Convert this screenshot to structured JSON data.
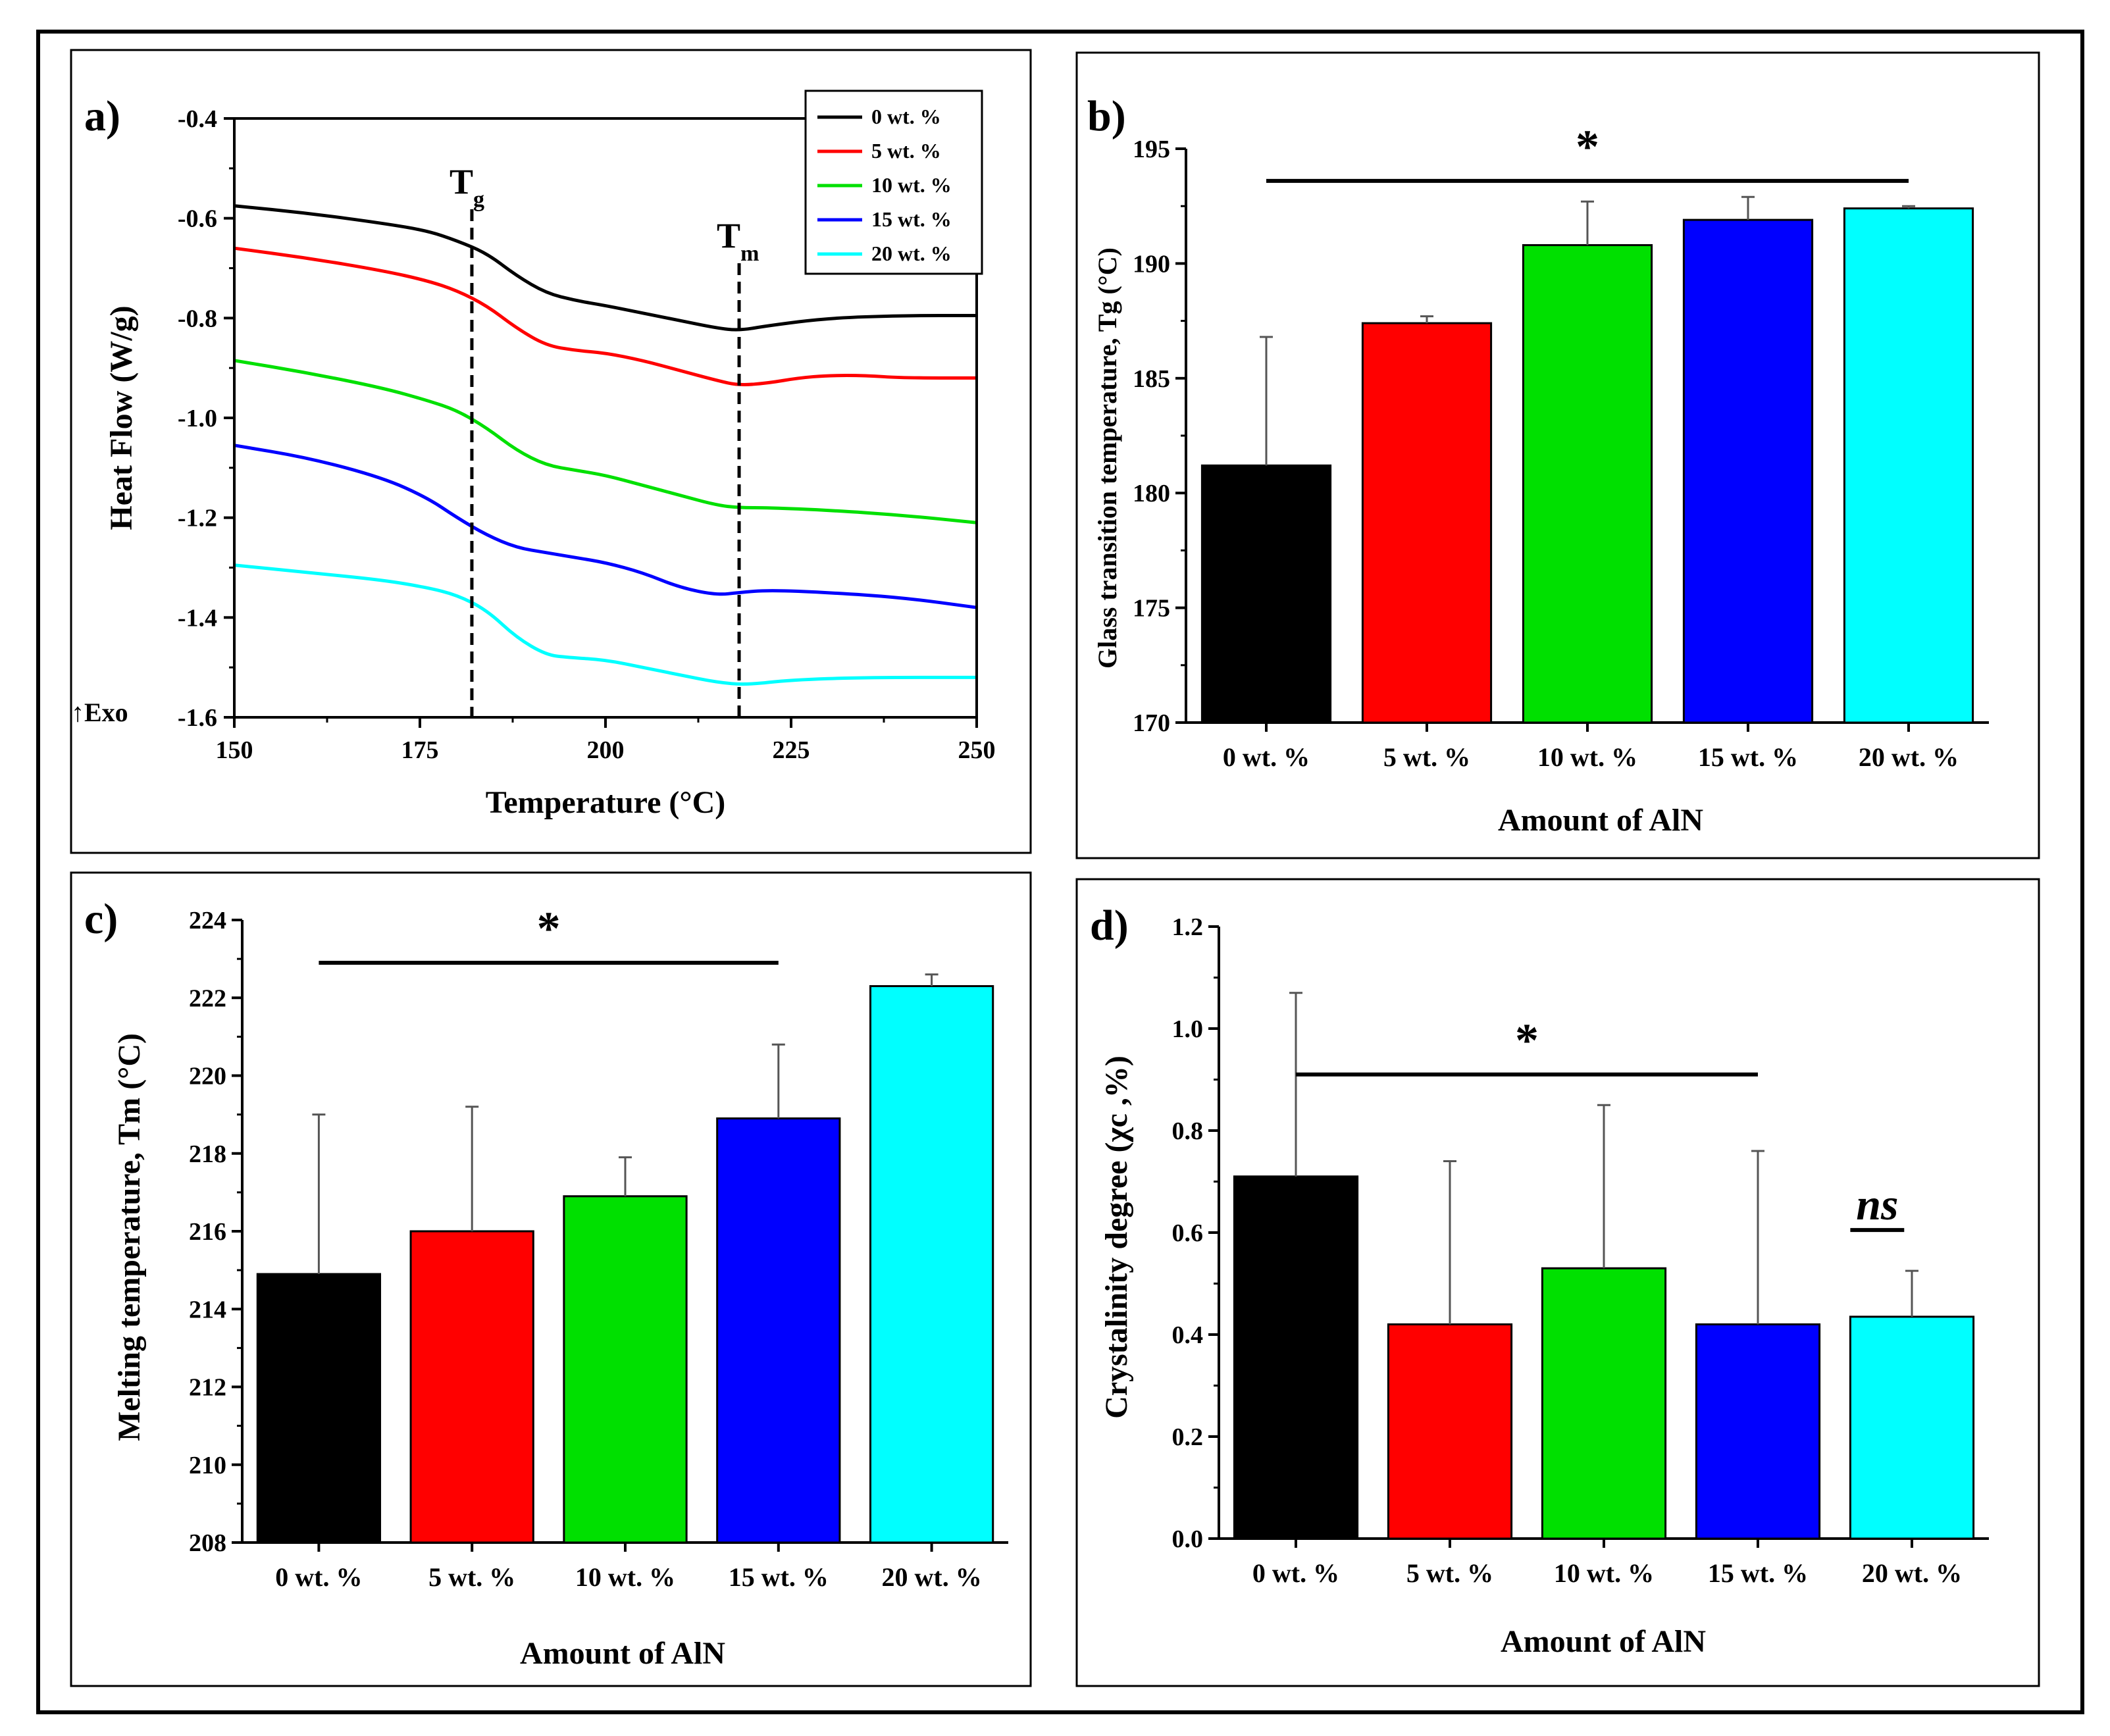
{
  "palette": [
    "#000000",
    "#ff0000",
    "#00e000",
    "#0000ff",
    "#00ffff"
  ],
  "chart_data": [
    {
      "id": "a",
      "panel_label": "a)",
      "type": "line",
      "xlabel": "Temperature (°C)",
      "ylabel": "Heat Flow (W/g)",
      "xlim": [
        150,
        250
      ],
      "ylim": [
        -1.6,
        -0.4
      ],
      "xticks": [
        150,
        175,
        200,
        225,
        250
      ],
      "yticks": [
        -1.6,
        -1.4,
        -1.2,
        -1.0,
        -0.8,
        -0.6,
        -0.4
      ],
      "ytick_labels": [
        "-1.6",
        "-1.4",
        "-1.2",
        "-1.0",
        "-0.8",
        "-0.6",
        "-0.4"
      ],
      "exo_label": "↑Exo",
      "markers": [
        {
          "main": "T",
          "sub": "g",
          "x": 182
        },
        {
          "main": "T",
          "sub": "m",
          "x": 218
        }
      ],
      "legend_position": "top-right",
      "series": [
        {
          "name": "0 wt. %",
          "x": [
            150,
            160,
            170,
            176,
            180,
            184,
            188,
            192,
            196,
            200,
            205,
            210,
            215,
            218,
            222,
            230,
            240,
            250
          ],
          "y": [
            -0.575,
            -0.59,
            -0.61,
            -0.625,
            -0.645,
            -0.67,
            -0.715,
            -0.75,
            -0.765,
            -0.775,
            -0.79,
            -0.805,
            -0.82,
            -0.825,
            -0.815,
            -0.8,
            -0.795,
            -0.795
          ]
        },
        {
          "name": "5 wt. %",
          "x": [
            150,
            160,
            170,
            176,
            180,
            184,
            188,
            192,
            196,
            200,
            205,
            210,
            215,
            218,
            222,
            226,
            230,
            235,
            240,
            250
          ],
          "y": [
            -0.66,
            -0.68,
            -0.705,
            -0.725,
            -0.745,
            -0.775,
            -0.82,
            -0.855,
            -0.865,
            -0.87,
            -0.885,
            -0.905,
            -0.925,
            -0.935,
            -0.93,
            -0.92,
            -0.915,
            -0.915,
            -0.92,
            -0.92
          ]
        },
        {
          "name": "10 wt. %",
          "x": [
            150,
            160,
            170,
            176,
            180,
            184,
            188,
            192,
            196,
            200,
            205,
            210,
            215,
            218,
            222,
            230,
            240,
            250
          ],
          "y": [
            -0.885,
            -0.91,
            -0.94,
            -0.965,
            -0.985,
            -1.02,
            -1.065,
            -1.095,
            -1.105,
            -1.115,
            -1.135,
            -1.155,
            -1.175,
            -1.18,
            -1.18,
            -1.185,
            -1.195,
            -1.21
          ]
        },
        {
          "name": "15 wt. %",
          "x": [
            150,
            160,
            170,
            176,
            180,
            184,
            188,
            192,
            196,
            200,
            205,
            210,
            215,
            218,
            222,
            230,
            240,
            250
          ],
          "y": [
            -1.055,
            -1.08,
            -1.12,
            -1.16,
            -1.2,
            -1.235,
            -1.26,
            -1.27,
            -1.28,
            -1.29,
            -1.31,
            -1.34,
            -1.355,
            -1.35,
            -1.345,
            -1.35,
            -1.36,
            -1.38
          ]
        },
        {
          "name": "20 wt. %",
          "x": [
            150,
            160,
            170,
            176,
            180,
            184,
            188,
            192,
            195,
            200,
            205,
            210,
            215,
            219,
            225,
            235,
            250
          ],
          "y": [
            -1.295,
            -1.31,
            -1.325,
            -1.34,
            -1.355,
            -1.385,
            -1.44,
            -1.475,
            -1.48,
            -1.485,
            -1.5,
            -1.515,
            -1.53,
            -1.535,
            -1.525,
            -1.52,
            -1.52
          ]
        }
      ]
    },
    {
      "id": "b",
      "panel_label": "b)",
      "type": "bar",
      "xlabel": "Amount of AlN",
      "ylabel": "Glass transition temperature, Tg (°C)",
      "categories": [
        "0 wt. %",
        "5 wt. %",
        "10 wt. %",
        "15 wt. %",
        "20 wt. %"
      ],
      "values": [
        181.2,
        187.4,
        190.8,
        191.9,
        192.4
      ],
      "errors": [
        5.6,
        0.3,
        1.9,
        1.0,
        0.1
      ],
      "ylim": [
        170,
        195
      ],
      "yticks": [
        170,
        175,
        180,
        185,
        190,
        195
      ],
      "ytick_labels": [
        "170",
        "175",
        "180",
        "185",
        "190",
        "195"
      ],
      "significance": [
        {
          "label": "*",
          "from": 0,
          "to": 4,
          "y": 193.6,
          "italic": false
        }
      ]
    },
    {
      "id": "c",
      "panel_label": "c)",
      "type": "bar",
      "xlabel": "Amount of AlN",
      "ylabel": "Melting temperature, Tm (°C)",
      "categories": [
        "0 wt. %",
        "5 wt. %",
        "10 wt. %",
        "15 wt. %",
        "20 wt. %"
      ],
      "values": [
        214.9,
        216.0,
        216.9,
        218.9,
        222.3
      ],
      "errors": [
        4.1,
        3.2,
        1.0,
        1.9,
        0.3
      ],
      "ylim": [
        208,
        224
      ],
      "yticks": [
        208,
        210,
        212,
        214,
        216,
        218,
        220,
        222,
        224
      ],
      "ytick_labels": [
        "208",
        "210",
        "212",
        "214",
        "216",
        "218",
        "220",
        "222",
        "224"
      ],
      "significance": [
        {
          "label": "*",
          "from": 0,
          "to": 3,
          "y": 222.9,
          "italic": false
        }
      ]
    },
    {
      "id": "d",
      "panel_label": "d)",
      "type": "bar",
      "xlabel": "Amount of AlN",
      "ylabel": "Crystalinity degree (χc ,%)",
      "categories": [
        "0 wt. %",
        "5 wt. %",
        "10 wt. %",
        "15 wt. %",
        "20 wt. %"
      ],
      "values": [
        0.71,
        0.42,
        0.53,
        0.42,
        0.435
      ],
      "errors": [
        0.36,
        0.32,
        0.32,
        0.34,
        0.09
      ],
      "ylim": [
        0,
        1.2
      ],
      "yticks": [
        0,
        0.2,
        0.4,
        0.6,
        0.8,
        1.0,
        1.2
      ],
      "ytick_labels": [
        "0.0",
        "0.2",
        "0.4",
        "0.6",
        "0.8",
        "1.0",
        "1.2"
      ],
      "significance": [
        {
          "label": "*",
          "from": 0,
          "to": 3,
          "y": 0.91,
          "italic": false
        },
        {
          "label": "ns",
          "from": 3,
          "to": 4,
          "y": 0.605,
          "italic": true
        }
      ]
    }
  ]
}
